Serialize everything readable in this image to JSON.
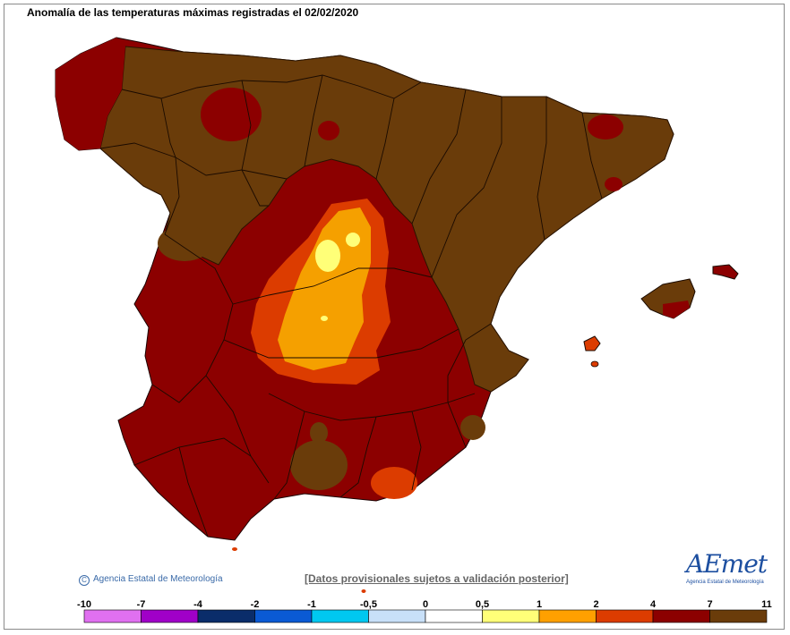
{
  "title": "Anomalía de las temperaturas máximas registradas el 02/02/2020",
  "copyright": "Agencia Estatal de Meteorología",
  "copyright_symbol": "C",
  "disclaimer": "[Datos provisionales sujetos a validación posterior]",
  "logo": {
    "text": "AEmet",
    "subtitle": "Agencia Estatal de Meteorología"
  },
  "legend": {
    "ticks": [
      "-10",
      "-7",
      "-4",
      "-2",
      "-1",
      "-0,5",
      "0",
      "0,5",
      "1",
      "2",
      "4",
      "7",
      "11"
    ],
    "colors": [
      "#e070f0",
      "#a000c8",
      "#0a2d6a",
      "#0a5ad4",
      "#00c8f0",
      "#c8e0f8",
      "#ffffff",
      "#ffff78",
      "#ffa000",
      "#dc3c00",
      "#8c0000",
      "#6a3c0a"
    ]
  },
  "colors": {
    "very_high": "#6a3c0a",
    "high": "#8c0000",
    "medium": "#dc3c00",
    "low": "#f5a000",
    "lowest": "#ffff78"
  }
}
